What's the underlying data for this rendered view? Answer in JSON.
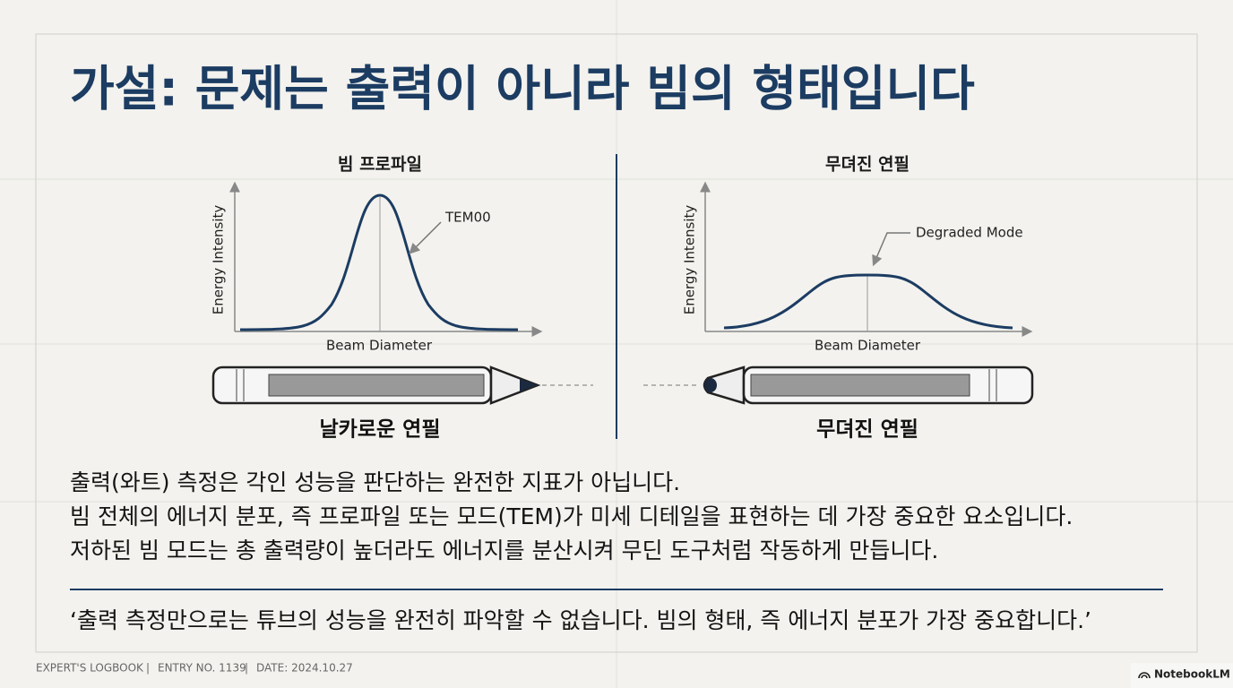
{
  "header": {
    "title": "가설: 문제는 출력이 아니라 빔의 형태입니다"
  },
  "panels": [
    {
      "title": "빔 프로파일",
      "y_axis_label": "Energy Intensity",
      "x_axis_label": "Beam Diameter",
      "annotation": "TEM00",
      "caption": "날카로운 연필"
    },
    {
      "title": "무뎌진 연필",
      "y_axis_label": "Energy Intensity",
      "x_axis_label": "Beam Diameter",
      "annotation": "Degraded Mode",
      "caption": "무뎌진 연필"
    }
  ],
  "body": {
    "lines": [
      "출력(와트) 측정은 각인 성능을 판단하는 완전한 지표가 아닙니다.",
      "빔 전체의 에너지 분포, 즉 프로파일 또는 모드(TEM)가 미세 디테일을 표현하는 데 가장 중요한 요소입니다.",
      "저하된 빔 모드는 총 출력량이 높더라도 에너지를 분산시켜 무딘 도구처럼 작동하게 만듭니다."
    ]
  },
  "quote": "‘출력 측정만으로는 튜브의 성능을 완전히 파악할 수 없습니다. 빔의 형태, 즉 에너지 분포가 가장 중요합니다.’",
  "footer": {
    "items": [
      "EXPERT'S LOGBOOK",
      "ENTRY NO. 1139",
      "DATE: 2024.10.27"
    ],
    "brand": "NotebookLM"
  }
}
